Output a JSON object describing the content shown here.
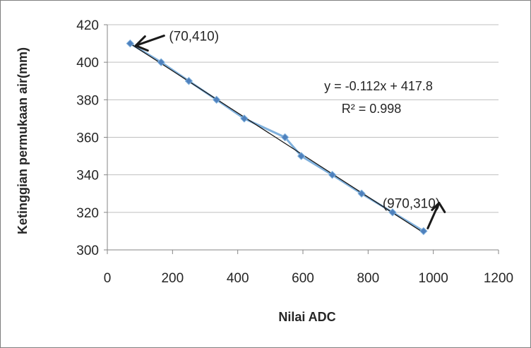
{
  "chart_data": {
    "type": "scatter",
    "xlabel": "Nilai ADC",
    "ylabel": "Ketinggian permukaan air(mm)",
    "xlim": [
      0,
      1200
    ],
    "ylim": [
      300,
      420
    ],
    "xticks": [
      0,
      200,
      400,
      600,
      800,
      1000,
      1200
    ],
    "yticks": [
      300,
      320,
      340,
      360,
      380,
      400,
      420
    ],
    "grid": "horizontal",
    "series": [
      {
        "x": [
          70,
          165,
          250,
          335,
          420,
          545,
          595,
          690,
          780,
          875,
          970
        ],
        "y": [
          410,
          400,
          390,
          380,
          370,
          360,
          350,
          340,
          330,
          320,
          310
        ]
      }
    ],
    "trendline": {
      "slope": -0.112,
      "intercept": 417.8,
      "equation": "y = -0.112x + 417.8",
      "r2": "R² = 0.998"
    },
    "annotations": [
      {
        "text": "(70,410)",
        "x": 70,
        "y": 410
      },
      {
        "text": "(970,310)",
        "x": 970,
        "y": 310
      }
    ],
    "colors": {
      "series_line": "#7fb0dc",
      "marker": "#4f81bd",
      "trendline": "#1a1a1a"
    }
  }
}
